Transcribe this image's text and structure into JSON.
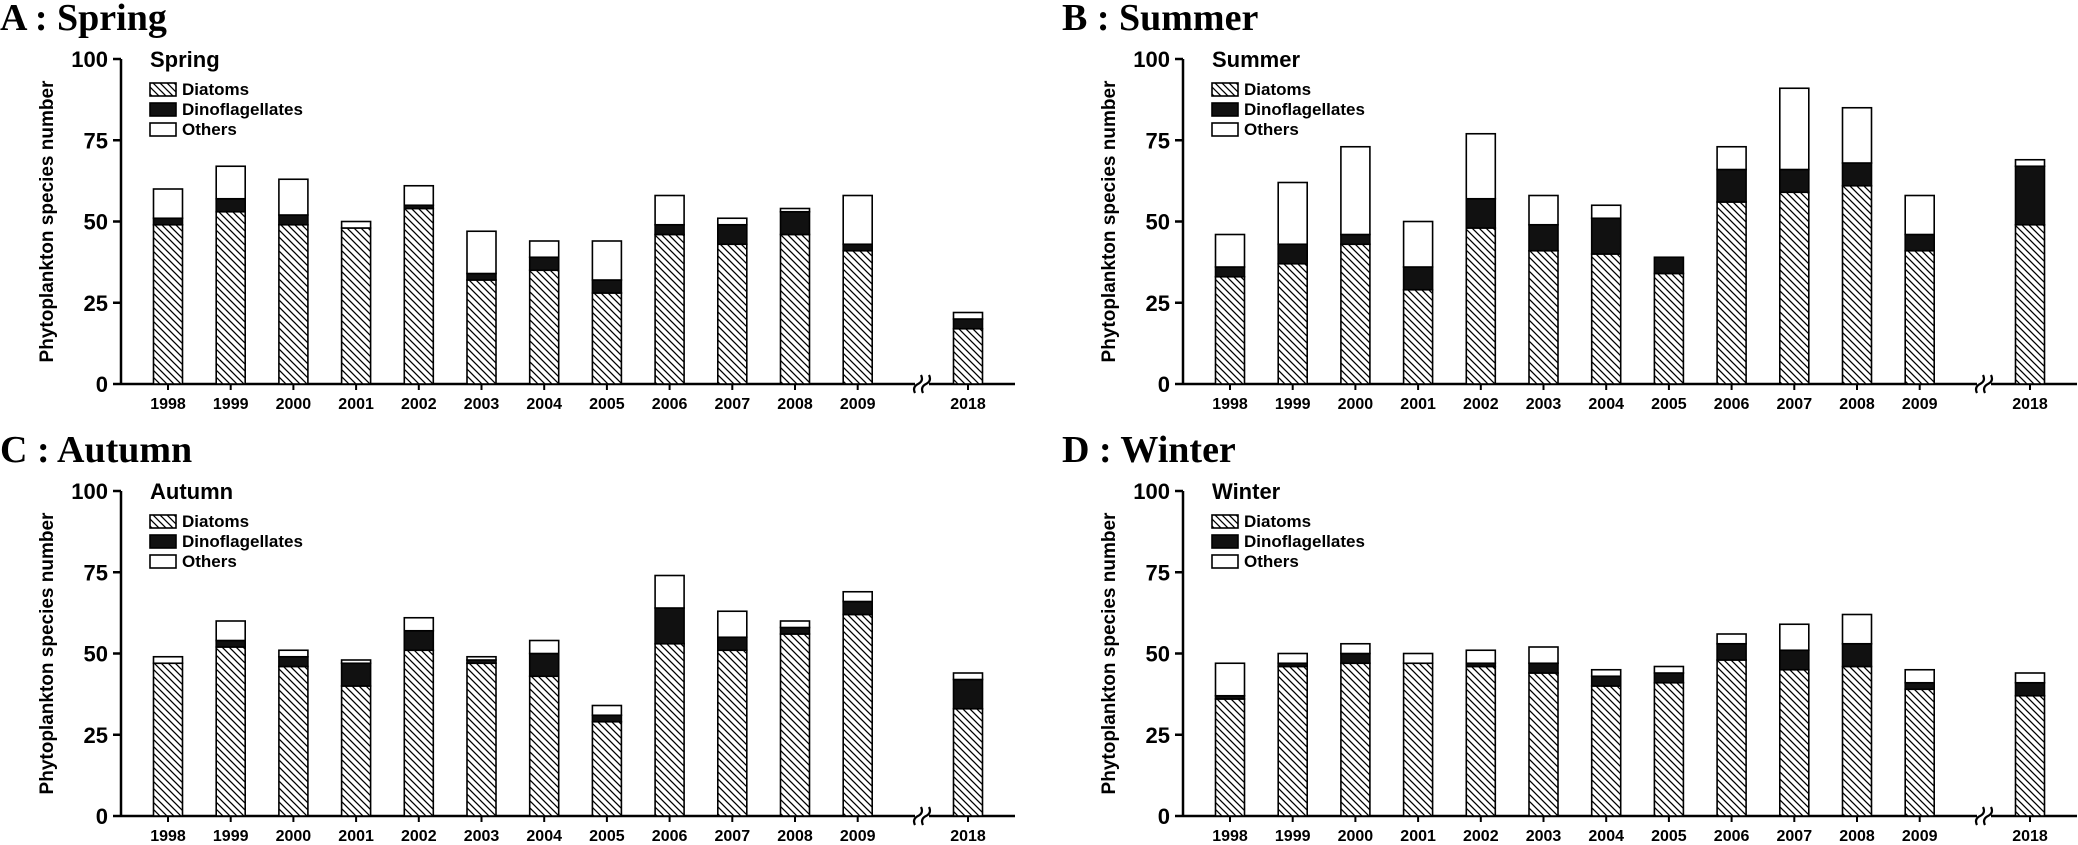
{
  "chart_data": [
    {
      "type": "bar",
      "stacked": true,
      "panel_label": "A : Spring",
      "title": "Spring",
      "xlabel": "",
      "ylabel": "Phytoplankton species number",
      "ylim": [
        0,
        100
      ],
      "yticks": [
        0,
        25,
        50,
        75,
        100
      ],
      "axis_break_between": [
        "2009",
        "2018"
      ],
      "categories": [
        "1998",
        "1999",
        "2000",
        "2001",
        "2002",
        "2003",
        "2004",
        "2005",
        "2006",
        "2007",
        "2008",
        "2009",
        "2018"
      ],
      "series": [
        {
          "name": "Diatoms",
          "values": [
            49,
            53,
            49,
            48,
            54,
            32,
            35,
            28,
            46,
            43,
            46,
            41,
            17
          ]
        },
        {
          "name": "Dinoflagellates",
          "values": [
            2,
            4,
            3,
            0,
            1,
            2,
            4,
            4,
            3,
            6,
            7,
            2,
            3
          ]
        },
        {
          "name": "Others",
          "values": [
            9,
            10,
            11,
            2,
            6,
            13,
            5,
            12,
            9,
            2,
            1,
            15,
            2
          ]
        }
      ]
    },
    {
      "type": "bar",
      "stacked": true,
      "panel_label": "B : Summer",
      "title": "Summer",
      "xlabel": "",
      "ylabel": "Phytoplankton species number",
      "ylim": [
        0,
        100
      ],
      "yticks": [
        0,
        25,
        50,
        75,
        100
      ],
      "axis_break_between": [
        "2009",
        "2018"
      ],
      "categories": [
        "1998",
        "1999",
        "2000",
        "2001",
        "2002",
        "2003",
        "2004",
        "2005",
        "2006",
        "2007",
        "2008",
        "2009",
        "2018"
      ],
      "series": [
        {
          "name": "Diatoms",
          "values": [
            33,
            37,
            43,
            29,
            48,
            41,
            40,
            34,
            56,
            59,
            61,
            41,
            49
          ]
        },
        {
          "name": "Dinoflagellates",
          "values": [
            3,
            6,
            3,
            7,
            9,
            8,
            11,
            5,
            10,
            7,
            7,
            5,
            18
          ]
        },
        {
          "name": "Others",
          "values": [
            10,
            19,
            27,
            14,
            20,
            9,
            4,
            0,
            7,
            25,
            17,
            12,
            2
          ]
        }
      ]
    },
    {
      "type": "bar",
      "stacked": true,
      "panel_label": "C : Autumn",
      "title": "Autumn",
      "xlabel": "",
      "ylabel": "Phytoplankton species number",
      "ylim": [
        0,
        100
      ],
      "yticks": [
        0,
        25,
        50,
        75,
        100
      ],
      "axis_break_between": [
        "2009",
        "2018"
      ],
      "categories": [
        "1998",
        "1999",
        "2000",
        "2001",
        "2002",
        "2003",
        "2004",
        "2005",
        "2006",
        "2007",
        "2008",
        "2009",
        "2018"
      ],
      "series": [
        {
          "name": "Diatoms",
          "values": [
            47,
            52,
            46,
            40,
            51,
            47,
            43,
            29,
            53,
            51,
            56,
            62,
            33
          ]
        },
        {
          "name": "Dinoflagellates",
          "values": [
            0,
            2,
            3,
            7,
            6,
            1,
            7,
            2,
            11,
            4,
            2,
            4,
            9
          ]
        },
        {
          "name": "Others",
          "values": [
            2,
            6,
            2,
            1,
            4,
            1,
            4,
            3,
            10,
            8,
            2,
            3,
            2
          ]
        }
      ]
    },
    {
      "type": "bar",
      "stacked": true,
      "panel_label": "D : Winter",
      "title": "Winter",
      "xlabel": "",
      "ylabel": "Phytoplankton species number",
      "ylim": [
        0,
        100
      ],
      "yticks": [
        0,
        25,
        50,
        75,
        100
      ],
      "axis_break_between": [
        "2009",
        "2018"
      ],
      "categories": [
        "1998",
        "1999",
        "2000",
        "2001",
        "2002",
        "2003",
        "2004",
        "2005",
        "2006",
        "2007",
        "2008",
        "2009",
        "2018"
      ],
      "series": [
        {
          "name": "Diatoms",
          "values": [
            36,
            46,
            47,
            47,
            46,
            44,
            40,
            41,
            48,
            45,
            46,
            39,
            37
          ]
        },
        {
          "name": "Dinoflagellates",
          "values": [
            1,
            1,
            3,
            0,
            1,
            3,
            3,
            3,
            5,
            6,
            7,
            2,
            4
          ]
        },
        {
          "name": "Others",
          "values": [
            10,
            3,
            3,
            3,
            4,
            5,
            2,
            2,
            3,
            8,
            9,
            4,
            3
          ]
        }
      ]
    }
  ],
  "colors": {
    "axis": "#000000",
    "dinoflagellates_fill": "#111111",
    "others_fill": "#ffffff",
    "diatoms_hatch": "#000000"
  }
}
